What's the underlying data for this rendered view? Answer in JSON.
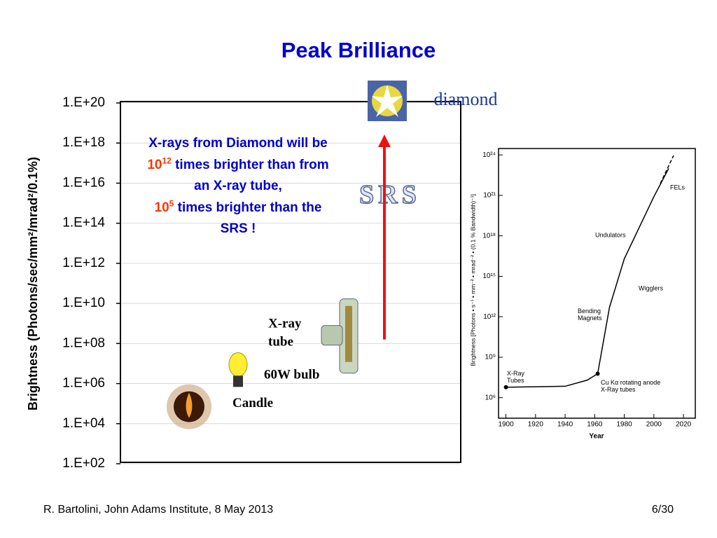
{
  "title": "Peak Brilliance",
  "footer": {
    "left": "R. Bartolini, John Adams Institute, 8 May 2013",
    "right": "6/30"
  },
  "annotation": [
    {
      "text": "X-rays from Diamond will be "
    },
    {
      "text": "10",
      "color": "#ff3300"
    },
    {
      "text": "12",
      "color": "#ff3300",
      "sup": true
    },
    {
      "text": " times brighter than from an X-ray tube,"
    },
    {
      "text": "10",
      "color": "#ff3300",
      "break": true
    },
    {
      "text": "5",
      "color": "#ff3300",
      "sup": true
    },
    {
      "text": " times brighter than the SRS !"
    }
  ],
  "chart_data": [
    {
      "type": "scatter",
      "log_y": true,
      "y_label": "Brightness (Photons/sec/mm²/mrad²/0.1%)",
      "ylim": [
        100,
        1e+20
      ],
      "yticks": [
        {
          "value": 1e+20,
          "label": "1.E+20"
        },
        {
          "value": 1e+18,
          "label": "1.E+18"
        },
        {
          "value": 1e+16,
          "label": "1.E+16"
        },
        {
          "value": 100000000000000.0,
          "label": "1.E+14"
        },
        {
          "value": 1000000000000.0,
          "label": "1.E+12"
        },
        {
          "value": 10000000000.0,
          "label": "1.E+10"
        },
        {
          "value": 100000000.0,
          "label": "1.E+08"
        },
        {
          "value": 1000000.0,
          "label": "1.E+06"
        },
        {
          "value": 10000.0,
          "label": "1.E+04"
        },
        {
          "value": 100,
          "label": "1.E+02"
        }
      ],
      "grid": true,
      "categories": [
        "Candle",
        "60W bulb",
        "X-ray tube",
        "SRS",
        "diamond"
      ],
      "values": [
        70000,
        4000000,
        300000000,
        2000000000000000.0,
        1e+20
      ]
    },
    {
      "type": "line",
      "log_y": true,
      "x_label": "Year",
      "y_label": "Brightness [Photons • s⁻¹ • mm⁻² • mrad⁻² • (0.1 % Bandwidth)⁻¹]",
      "xlim": [
        1895,
        2028
      ],
      "ylim": [
        30000,
        3e+24
      ],
      "xticks": [
        1900,
        1920,
        1940,
        1960,
        1980,
        2000,
        2020
      ],
      "yticks": [
        {
          "value": 1000000.0,
          "label": "10⁶"
        },
        {
          "value": 1000000000.0,
          "label": "10⁹"
        },
        {
          "value": 1000000000000.0,
          "label": "10¹²"
        },
        {
          "value": 1000000000000000.0,
          "label": "10¹⁵"
        },
        {
          "value": 1e+18,
          "label": "10¹⁸"
        },
        {
          "value": 1e+21,
          "label": "10²¹"
        },
        {
          "value": 1e+24,
          "label": "10²⁴"
        }
      ],
      "x": [
        1900,
        1940,
        1955,
        1962,
        1970,
        1980,
        2000,
        2010
      ],
      "series": [
        {
          "color": "#000000",
          "values": [
            6000000,
            7000000,
            20000000,
            60000000,
            5000000000000.0,
            2e+16,
            8e+20,
            1e+23
          ]
        }
      ],
      "annotations": [
        "X-Ray Tubes",
        "Cu Kα rotating anode X-Ray tubes",
        "Bending Magnets",
        "Wigglers",
        "Undulators",
        "FELs"
      ]
    }
  ]
}
